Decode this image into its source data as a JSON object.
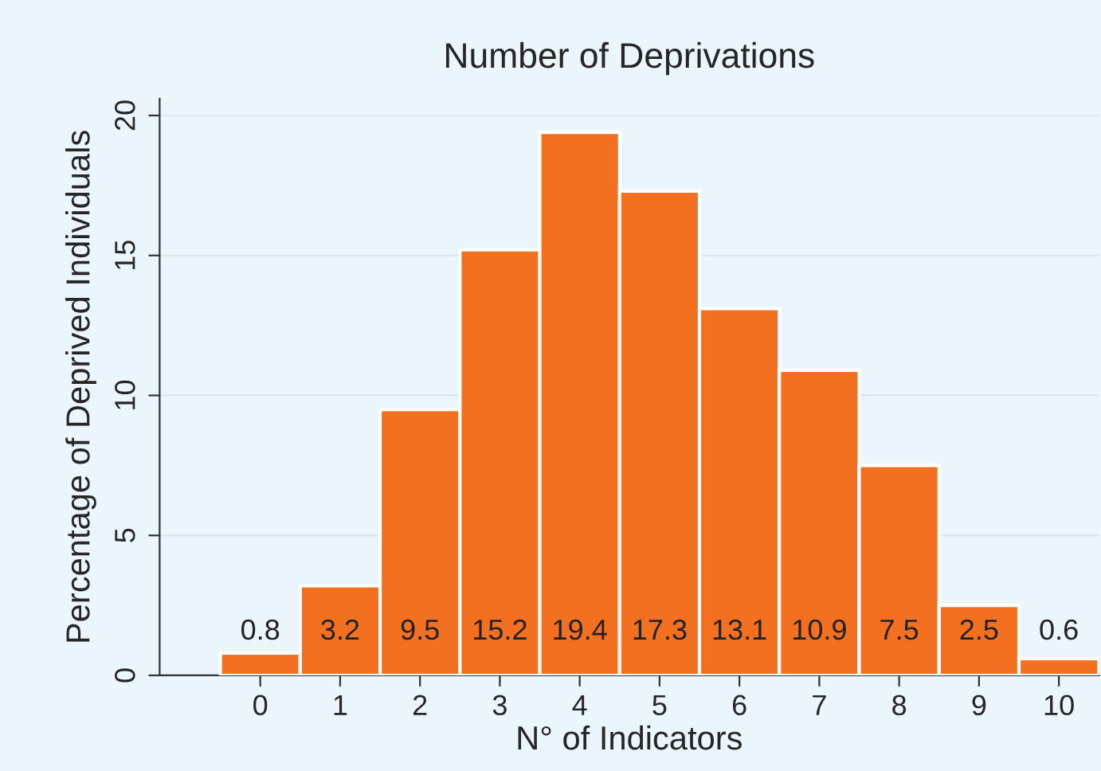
{
  "chart_data": {
    "type": "bar",
    "title": "Number of Deprivations",
    "xlabel": "N° of Indicators",
    "ylabel": "Percentage of Deprived Individuals",
    "x": [
      0,
      1,
      2,
      3,
      4,
      5,
      6,
      7,
      8,
      9,
      10
    ],
    "values": [
      0.8,
      3.2,
      9.5,
      15.2,
      19.4,
      17.3,
      13.1,
      10.9,
      7.5,
      2.5,
      0.6
    ],
    "color": "#f37021",
    "xlim": [
      -1.26,
      10.5
    ],
    "xticks": [
      0,
      1,
      2,
      3,
      4,
      5,
      6,
      7,
      8,
      9,
      10
    ],
    "ylim": [
      0,
      20.6
    ],
    "yticks": [
      0,
      5,
      10,
      15,
      20
    ],
    "grid": "y",
    "data_labels": true
  }
}
